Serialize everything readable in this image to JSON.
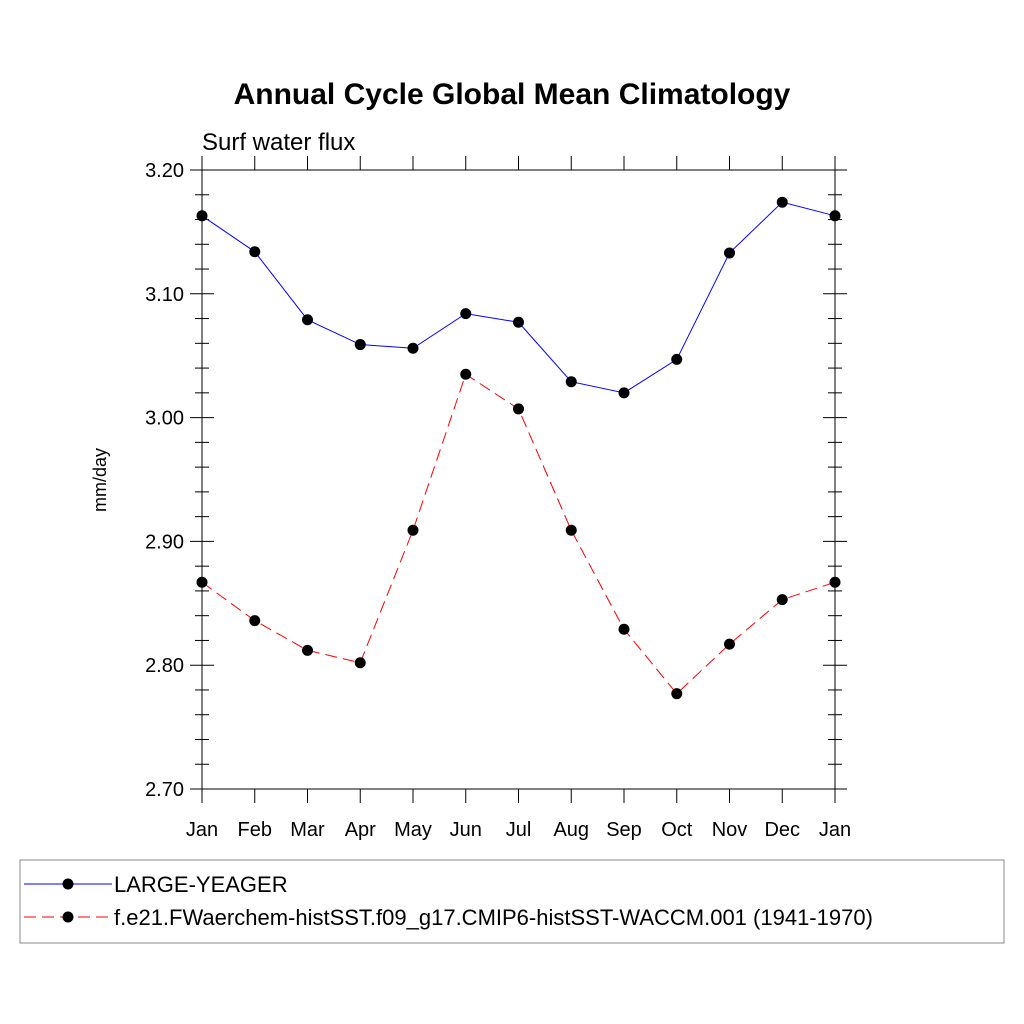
{
  "chart_data": {
    "type": "line",
    "title": "Annual Cycle Global Mean Climatology",
    "subtitle": "Surf water flux",
    "xlabel": "",
    "ylabel": "mm/day",
    "categories": [
      "Jan",
      "Feb",
      "Mar",
      "Apr",
      "May",
      "Jun",
      "Jul",
      "Aug",
      "Sep",
      "Oct",
      "Nov",
      "Dec",
      "Jan"
    ],
    "ylim": [
      2.7,
      3.2
    ],
    "yticks": [
      "2.70",
      "2.80",
      "2.90",
      "3.00",
      "3.10",
      "3.20"
    ],
    "grid": false,
    "legend_position": "bottom",
    "series": [
      {
        "name": "LARGE-YEAGER",
        "color": "#0000ff",
        "line_style": "solid",
        "marker": "filled-circle",
        "values": [
          3.163,
          3.134,
          3.079,
          3.059,
          3.056,
          3.084,
          3.077,
          3.029,
          3.02,
          3.047,
          3.133,
          3.174,
          3.163
        ]
      },
      {
        "name": "f.e21.FWaerchem-histSST.f09_g17.CMIP6-histSST-WACCM.001 (1941-1970)",
        "color": "#ff0000",
        "line_style": "dashed",
        "marker": "filled-circle",
        "values": [
          2.867,
          2.836,
          2.812,
          2.802,
          2.909,
          3.035,
          3.007,
          2.909,
          2.829,
          2.777,
          2.817,
          2.853,
          2.867
        ]
      }
    ]
  }
}
